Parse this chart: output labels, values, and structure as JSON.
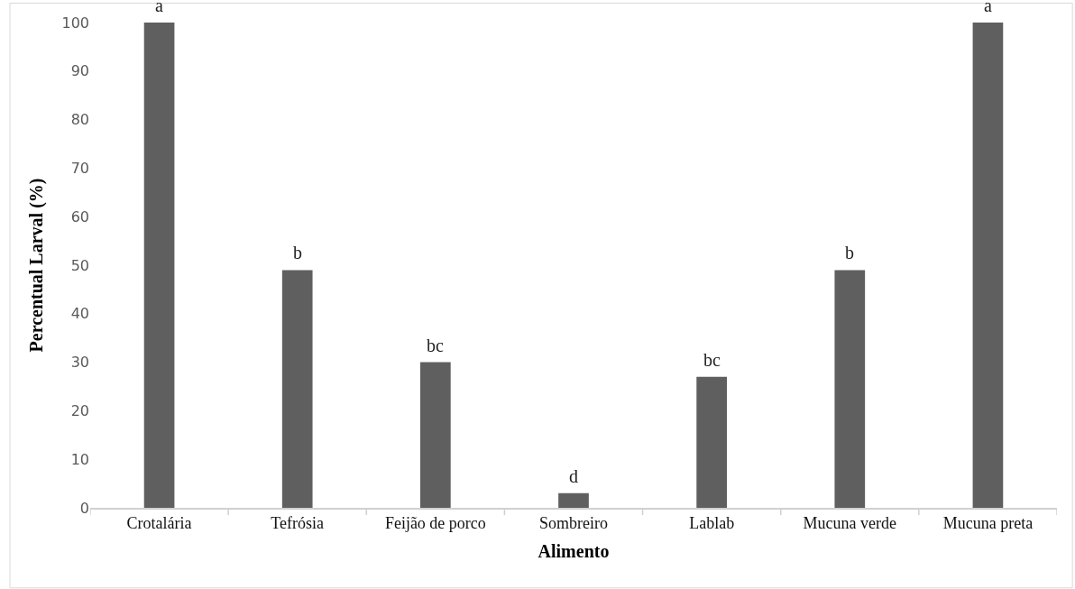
{
  "chart_data": {
    "type": "bar",
    "xlabel": "Alimento",
    "ylabel": "Percentual Larval (%)",
    "categories": [
      "Crotalária",
      "Tefrósia",
      "Feijão de porco",
      "Sombreiro",
      "Lablab",
      "Mucuna verde",
      "Mucuna preta"
    ],
    "values": [
      100,
      49,
      30,
      3,
      27,
      49,
      100
    ],
    "color": "#5f5f5f",
    "ylim": [
      0,
      100
    ],
    "yticks": [
      0,
      10,
      20,
      30,
      40,
      50,
      60,
      70,
      80,
      90,
      100
    ],
    "grid": false,
    "annotations": [
      {
        "text": "a",
        "x": "Crotalária",
        "y": 100
      },
      {
        "text": "b",
        "x": "Tefrósia",
        "y": 49
      },
      {
        "text": "bc",
        "x": "Feijão de porco",
        "y": 30
      },
      {
        "text": "d",
        "x": "Sombreiro",
        "y": 3
      },
      {
        "text": "bc",
        "x": "Lablab",
        "y": 27
      },
      {
        "text": "b",
        "x": "Mucuna verde",
        "y": 49
      },
      {
        "text": "a",
        "x": "Mucuna preta",
        "y": 100
      }
    ]
  }
}
